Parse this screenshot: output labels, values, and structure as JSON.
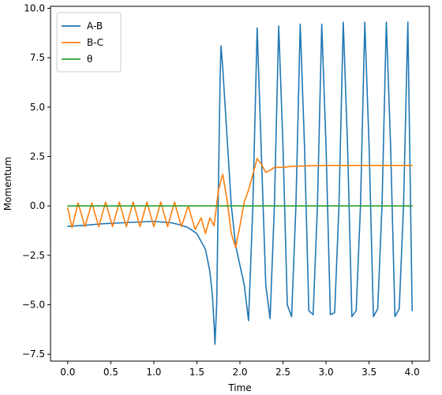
{
  "chart_data": {
    "type": "line",
    "title": "",
    "xlabel": "Time",
    "ylabel": "Momentum",
    "xlim": [
      -0.2,
      4.2
    ],
    "ylim": [
      -7.85,
      10.1
    ],
    "x_ticks": [
      0.0,
      0.5,
      1.0,
      1.5,
      2.0,
      2.5,
      3.0,
      3.5,
      4.0
    ],
    "x_tick_labels": [
      "0.0",
      "0.5",
      "1.0",
      "1.5",
      "2.0",
      "2.5",
      "3.0",
      "3.5",
      "4.0"
    ],
    "y_ticks": [
      -7.5,
      -5.0,
      -2.5,
      0.0,
      2.5,
      5.0,
      7.5,
      10.0
    ],
    "y_tick_labels": [
      "−7.5",
      "−5.0",
      "−2.5",
      "0.0",
      "2.5",
      "5.0",
      "7.5",
      "10.0"
    ],
    "grid": false,
    "legend_position": "upper-left",
    "series": [
      {
        "name": "A-B",
        "color": "#1f77b4",
        "points": [
          [
            0.0,
            -1.03
          ],
          [
            0.2,
            -0.98
          ],
          [
            0.4,
            -0.9
          ],
          [
            0.6,
            -0.86
          ],
          [
            0.8,
            -0.82
          ],
          [
            1.0,
            -0.78
          ],
          [
            1.2,
            -0.85
          ],
          [
            1.3,
            -0.95
          ],
          [
            1.4,
            -1.1
          ],
          [
            1.5,
            -1.4
          ],
          [
            1.55,
            -1.8
          ],
          [
            1.6,
            -2.2
          ],
          [
            1.65,
            -3.3
          ],
          [
            1.68,
            -4.5
          ],
          [
            1.7,
            -6.0
          ],
          [
            1.71,
            -7.0
          ],
          [
            1.73,
            -5.0
          ],
          [
            1.75,
            1.0
          ],
          [
            1.77,
            6.5
          ],
          [
            1.78,
            8.1
          ],
          [
            1.8,
            7.0
          ],
          [
            1.85,
            3.5
          ],
          [
            1.9,
            0.0
          ],
          [
            1.95,
            -2.0
          ],
          [
            2.0,
            -3.0
          ],
          [
            2.05,
            -4.0
          ],
          [
            2.1,
            -5.8
          ],
          [
            2.15,
            0.0
          ],
          [
            2.2,
            9.0
          ],
          [
            2.25,
            2.5
          ],
          [
            2.3,
            -4.0
          ],
          [
            2.35,
            -5.7
          ],
          [
            2.4,
            0.0
          ],
          [
            2.45,
            9.1
          ],
          [
            2.5,
            3.0
          ],
          [
            2.55,
            -5.0
          ],
          [
            2.6,
            -5.6
          ],
          [
            2.65,
            0.0
          ],
          [
            2.7,
            9.2
          ],
          [
            2.75,
            3.0
          ],
          [
            2.8,
            -5.3
          ],
          [
            2.85,
            -5.5
          ],
          [
            2.9,
            0.0
          ],
          [
            2.95,
            9.2
          ],
          [
            3.0,
            3.0
          ],
          [
            3.05,
            -5.5
          ],
          [
            3.1,
            -5.4
          ],
          [
            3.15,
            0.0
          ],
          [
            3.2,
            9.3
          ],
          [
            3.25,
            3.0
          ],
          [
            3.3,
            -5.6
          ],
          [
            3.35,
            -5.3
          ],
          [
            3.4,
            0.0
          ],
          [
            3.45,
            9.3
          ],
          [
            3.5,
            3.0
          ],
          [
            3.55,
            -5.6
          ],
          [
            3.6,
            -5.2
          ],
          [
            3.65,
            0.0
          ],
          [
            3.7,
            9.3
          ],
          [
            3.75,
            3.0
          ],
          [
            3.8,
            -5.6
          ],
          [
            3.85,
            -5.2
          ],
          [
            3.9,
            0.0
          ],
          [
            3.95,
            9.3
          ],
          [
            4.0,
            -5.3
          ]
        ]
      },
      {
        "name": "B-C",
        "color": "#ff7f0e",
        "points": [
          [
            0.0,
            -0.1
          ],
          [
            0.05,
            -1.1
          ],
          [
            0.12,
            0.15
          ],
          [
            0.2,
            -1.05
          ],
          [
            0.28,
            0.15
          ],
          [
            0.36,
            -1.05
          ],
          [
            0.44,
            0.2
          ],
          [
            0.52,
            -1.05
          ],
          [
            0.6,
            0.2
          ],
          [
            0.68,
            -1.05
          ],
          [
            0.76,
            0.2
          ],
          [
            0.84,
            -1.05
          ],
          [
            0.92,
            0.2
          ],
          [
            1.0,
            -1.05
          ],
          [
            1.08,
            0.2
          ],
          [
            1.16,
            -1.05
          ],
          [
            1.24,
            0.2
          ],
          [
            1.32,
            -1.05
          ],
          [
            1.4,
            0.0
          ],
          [
            1.48,
            -1.2
          ],
          [
            1.55,
            -0.6
          ],
          [
            1.6,
            -1.4
          ],
          [
            1.65,
            -0.6
          ],
          [
            1.7,
            -1.0
          ],
          [
            1.75,
            0.8
          ],
          [
            1.8,
            1.6
          ],
          [
            1.85,
            0.3
          ],
          [
            1.9,
            -1.4
          ],
          [
            1.95,
            -2.1
          ],
          [
            2.0,
            -1.0
          ],
          [
            2.05,
            0.2
          ],
          [
            2.1,
            0.8
          ],
          [
            2.15,
            1.6
          ],
          [
            2.2,
            2.4
          ],
          [
            2.25,
            2.1
          ],
          [
            2.3,
            1.7
          ],
          [
            2.35,
            1.8
          ],
          [
            2.4,
            1.95
          ],
          [
            2.5,
            1.95
          ],
          [
            2.6,
            2.0
          ],
          [
            2.8,
            2.03
          ],
          [
            3.0,
            2.05
          ],
          [
            3.5,
            2.05
          ],
          [
            4.0,
            2.05
          ]
        ]
      },
      {
        "name": "θ",
        "color": "#2ca02c",
        "points": [
          [
            0.0,
            0.0
          ],
          [
            4.0,
            0.0
          ]
        ]
      }
    ]
  }
}
